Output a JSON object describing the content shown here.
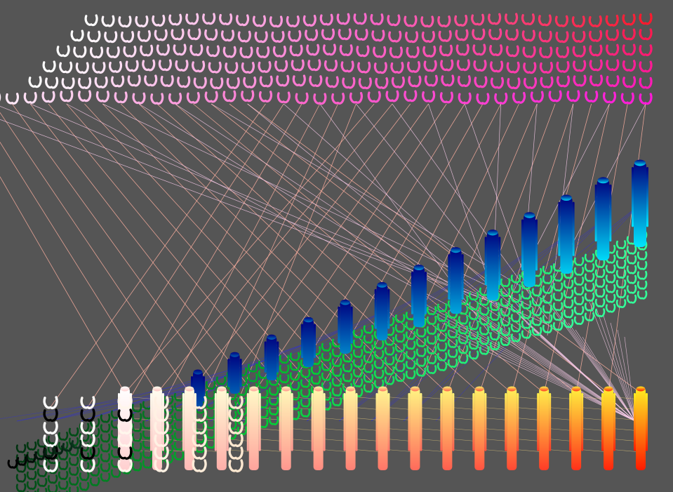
{
  "canvas": {
    "background": "#555555"
  },
  "groups": [
    {
      "id": "pink-red-grid",
      "shape": "hook",
      "colors": {
        "left": "#ffffff",
        "mid": "#ff66cc",
        "top_right": "#ff1a2e",
        "bottom_right": "#ff1ad9"
      }
    },
    {
      "id": "blue-cylinders",
      "shape": "cylinder",
      "colors": {
        "top": "#000080",
        "bottom": "#00e6ff"
      }
    },
    {
      "id": "green-wave",
      "shape": "hook",
      "colors": {
        "left": "#003310",
        "mid": "#00cc33",
        "right": "#33ff99"
      }
    },
    {
      "id": "yellow-red-cylinders",
      "shape": "cylinder",
      "colors": {
        "left": "#ffffff",
        "top": "#ffee22",
        "bottom": "#ff1a00"
      }
    },
    {
      "id": "black-white-loops",
      "shape": "hook",
      "colors": {
        "dark": "#000000",
        "light": "#ffffff"
      }
    }
  ],
  "connectors": {
    "pink_to_yellow": "#ffb0a0",
    "pink_to_blue": "#ffd0f0",
    "blue_to_yellow": "#3333cc"
  }
}
